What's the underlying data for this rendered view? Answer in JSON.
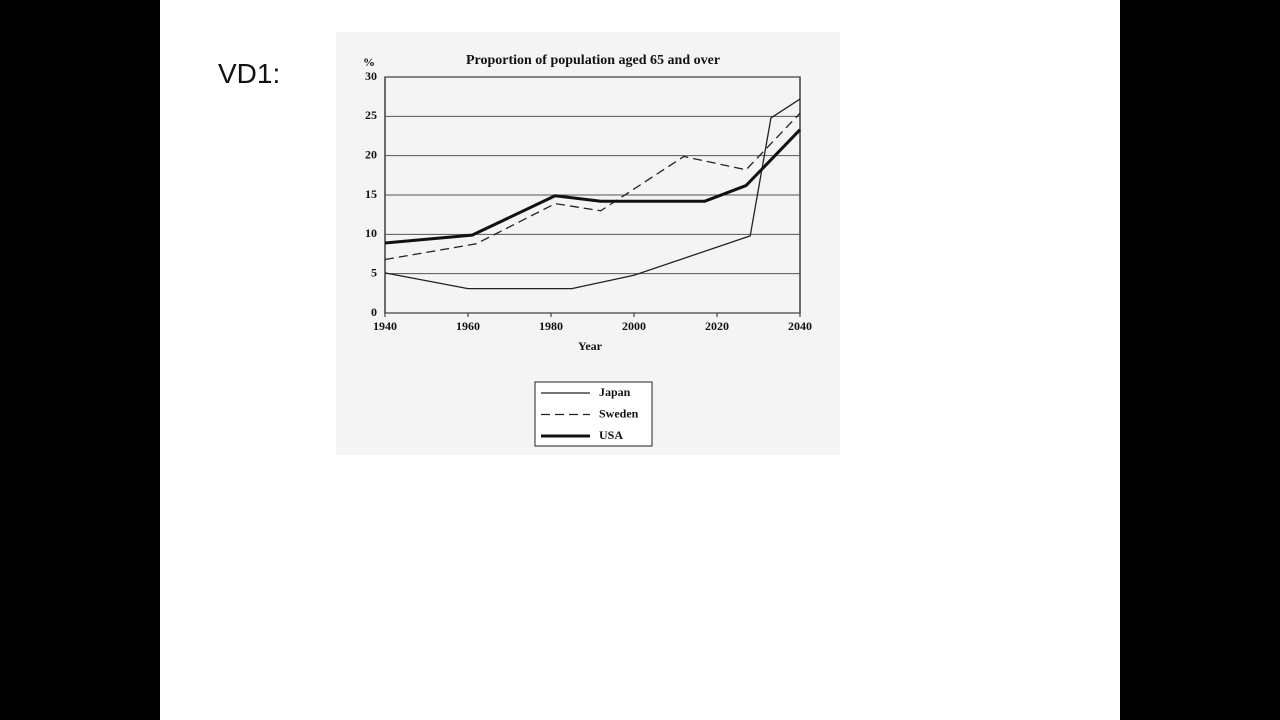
{
  "slide": {
    "label": "VD1:"
  },
  "chart_data": {
    "type": "line",
    "title": "Proportion of population aged 65 and over",
    "y_label": "%",
    "x_label": "Year",
    "xlim": [
      1940,
      2040
    ],
    "xticks": [
      1940,
      1960,
      1980,
      2000,
      2020,
      2040
    ],
    "ylim": [
      0,
      30
    ],
    "yticks": [
      0,
      5,
      10,
      15,
      20,
      25,
      30
    ],
    "grid": true,
    "series": [
      {
        "name": "Japan",
        "color": "#222222",
        "line_style": "solid",
        "width": 1.3,
        "x": [
          1940,
          1960,
          1985,
          2000,
          2028,
          2033,
          2040
        ],
        "values": [
          5.1,
          3.1,
          3.1,
          4.8,
          9.8,
          24.8,
          27.2
        ]
      },
      {
        "name": "Sweden",
        "color": "#222222",
        "line_style": "dashed",
        "width": 1.3,
        "x": [
          1940,
          1962,
          1981,
          1992,
          2012,
          2027,
          2040
        ],
        "values": [
          6.8,
          8.8,
          13.9,
          13,
          19.9,
          18.2,
          25.4
        ]
      },
      {
        "name": "USA",
        "color": "#111111",
        "line_style": "solid",
        "width": 3,
        "x": [
          1940,
          1961,
          1981,
          1992,
          2017,
          2027,
          2040
        ],
        "values": [
          8.9,
          9.9,
          14.9,
          14.2,
          14.2,
          16.2,
          23.3
        ]
      }
    ]
  }
}
